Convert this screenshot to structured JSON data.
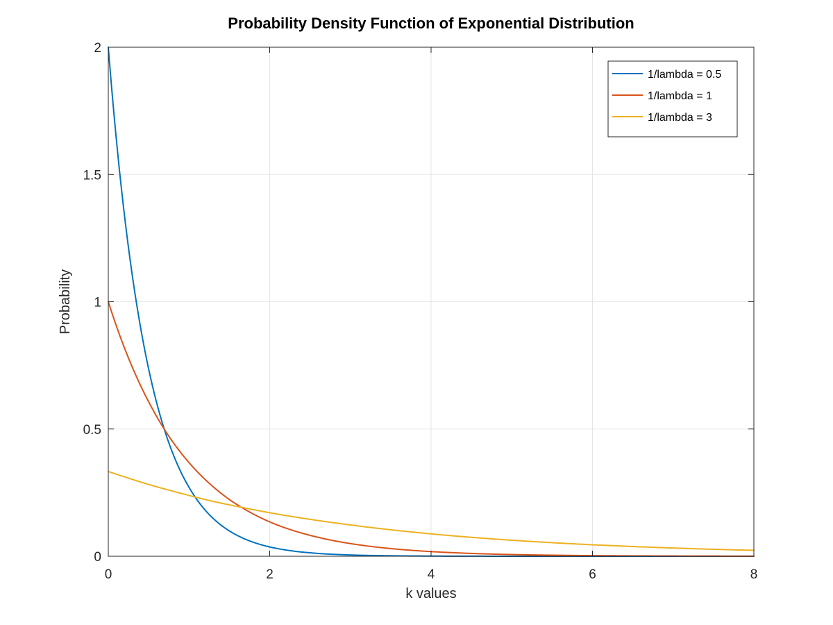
{
  "chart_data": {
    "type": "line",
    "title": "Probability Density Function of Exponential Distribution",
    "xlabel": "k values",
    "ylabel": "Probability",
    "xlim": [
      0,
      8
    ],
    "ylim": [
      0,
      2
    ],
    "xticks": [
      0,
      2,
      4,
      6,
      8
    ],
    "yticks": [
      0,
      0.5,
      1,
      1.5,
      2
    ],
    "xtick_labels": [
      "0",
      "2",
      "4",
      "6",
      "8"
    ],
    "ytick_labels": [
      "0",
      "0.5",
      "1",
      "1.5",
      "2"
    ],
    "grid": true,
    "legend_position": "top-right",
    "x": [
      0,
      0.25,
      0.5,
      0.75,
      1,
      1.25,
      1.5,
      1.75,
      2,
      2.5,
      3,
      3.5,
      4,
      4.5,
      5,
      5.5,
      6,
      6.5,
      7,
      7.5,
      8
    ],
    "series": [
      {
        "name": "1/lambda = 0.5",
        "color": "#0072BD",
        "values": [
          2.0,
          1.213,
          0.736,
          0.446,
          0.271,
          0.164,
          0.0996,
          0.0604,
          0.0366,
          0.0135,
          0.00496,
          0.00182,
          0.00067,
          0.00025,
          9e-05,
          3e-05,
          1e-05,
          0.0,
          0.0,
          0.0,
          0.0
        ]
      },
      {
        "name": "1/lambda = 1",
        "color": "#D95319",
        "values": [
          1.0,
          0.779,
          0.607,
          0.472,
          0.368,
          0.287,
          0.223,
          0.174,
          0.135,
          0.0821,
          0.0498,
          0.0302,
          0.0183,
          0.0111,
          0.00674,
          0.00409,
          0.00248,
          0.0015,
          0.00091,
          0.00055,
          0.00034
        ]
      },
      {
        "name": "1/lambda = 3",
        "color": "#EDB120",
        "values": [
          0.333,
          0.307,
          0.282,
          0.26,
          0.239,
          0.219,
          0.202,
          0.186,
          0.171,
          0.145,
          0.123,
          0.104,
          0.0879,
          0.0744,
          0.063,
          0.0533,
          0.0451,
          0.0382,
          0.0323,
          0.0274,
          0.0232
        ]
      }
    ]
  }
}
